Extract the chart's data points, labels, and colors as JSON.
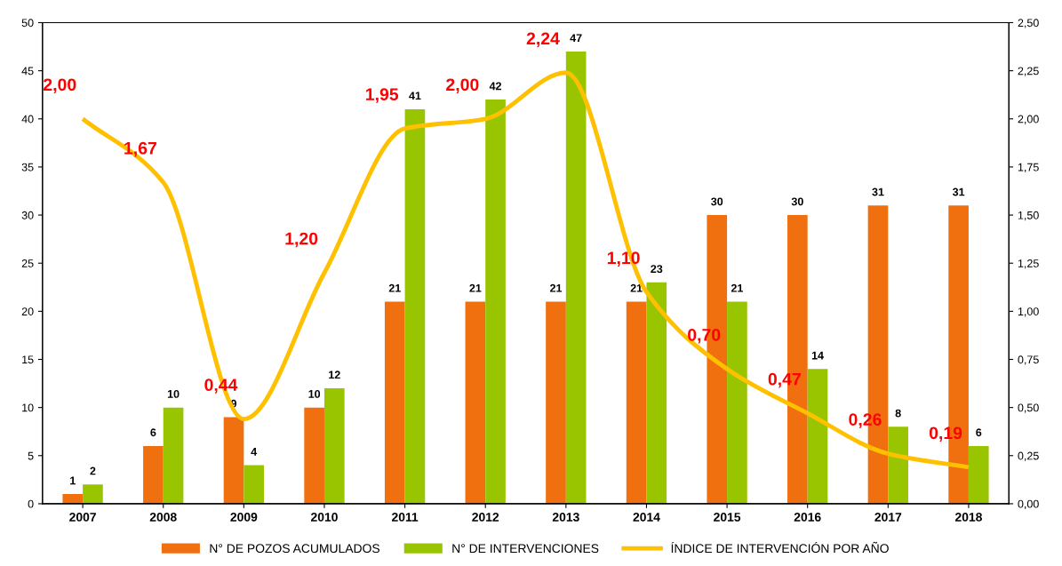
{
  "chart_data": {
    "type": "bar",
    "categories": [
      "2007",
      "2008",
      "2009",
      "2010",
      "2011",
      "2012",
      "2013",
      "2014",
      "2015",
      "2016",
      "2017",
      "2018"
    ],
    "series": [
      {
        "name": "N° DE POZOS ACUMULADOS",
        "color": "#f07010",
        "values": [
          1,
          6,
          9,
          10,
          21,
          21,
          21,
          21,
          30,
          30,
          31,
          31
        ],
        "data_labels": true
      },
      {
        "name": "N° DE INTERVENCIONES",
        "color": "#99c400",
        "values": [
          2,
          10,
          4,
          12,
          41,
          42,
          47,
          23,
          21,
          14,
          8,
          6
        ],
        "data_labels": true
      },
      {
        "name": "ÍNDICE DE INTERVENCIÓN POR AÑO",
        "type": "line",
        "axis": "y2",
        "color": "#ffc000",
        "marker": "none",
        "values": [
          2.0,
          1.67,
          0.44,
          1.2,
          1.95,
          2.0,
          2.24,
          1.1,
          0.7,
          0.47,
          0.26,
          0.19
        ],
        "value_labels": [
          "2,00",
          "1,67",
          "0,44",
          "1,20",
          "1,95",
          "2,00",
          "2,24",
          "1,10",
          "0,70",
          "0,47",
          "0,26",
          "0,19"
        ]
      }
    ],
    "ylim": [
      0,
      50
    ],
    "yticks": [
      0,
      5,
      10,
      15,
      20,
      25,
      30,
      35,
      40,
      45,
      50
    ],
    "y2lim": [
      0,
      2.5
    ],
    "y2ticks": [
      {
        "value": 0,
        "label": "0,00"
      },
      {
        "value": 0.25,
        "label": "0,25"
      },
      {
        "value": 0.5,
        "label": "0,50"
      },
      {
        "value": 0.75,
        "label": "0,75"
      },
      {
        "value": 1.0,
        "label": "1,00"
      },
      {
        "value": 1.25,
        "label": "1,25"
      },
      {
        "value": 1.5,
        "label": "1,50"
      },
      {
        "value": 1.75,
        "label": "1,75"
      },
      {
        "value": 2.0,
        "label": "2,00"
      },
      {
        "value": 2.25,
        "label": "2,25"
      },
      {
        "value": 2.5,
        "label": "2,50"
      }
    ],
    "grid": false,
    "legend": "bottom"
  }
}
